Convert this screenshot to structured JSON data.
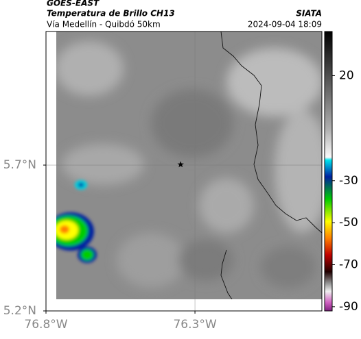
{
  "header": {
    "satellite": "GOES-EAST",
    "product": "Temperatura de Brillo CH13",
    "region": "Vía Medellín - Quibdó 50km",
    "source": "SIATA",
    "datetime": "2024-09-04 18:09"
  },
  "map": {
    "lonlim": [
      -76.8,
      -75.874
    ],
    "latlim": [
      5.2,
      6.158
    ],
    "lonticks": [
      {
        "value": -76.8,
        "label": "76.8°W"
      },
      {
        "value": -76.3,
        "label": "76.3°W"
      }
    ],
    "latticks": [
      {
        "value": 5.2,
        "label": "5.2°N"
      },
      {
        "value": 5.7,
        "label": "5.7°N"
      }
    ],
    "grid": true,
    "marker": {
      "lon": -76.348,
      "lat": 5.702
    }
  },
  "colorbar": {
    "lim": [
      -92,
      41
    ],
    "ticks": [
      20,
      -30,
      -50,
      -70,
      -90
    ]
  }
}
